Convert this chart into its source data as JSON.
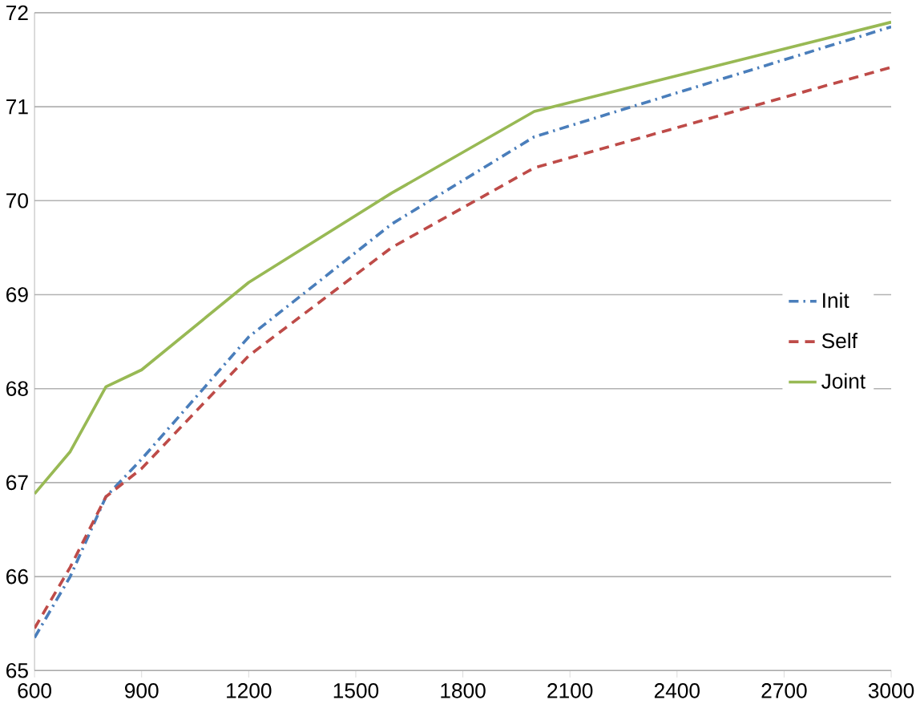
{
  "chart_data": {
    "type": "line",
    "x": [
      600,
      700,
      800,
      900,
      1200,
      1600,
      2000,
      3000
    ],
    "series": [
      {
        "name": "Init",
        "color": "#4a7ebb",
        "line_style": "dashdot",
        "values": [
          65.35,
          66.0,
          66.85,
          67.25,
          68.55,
          69.75,
          70.68,
          71.85
        ]
      },
      {
        "name": "Self",
        "color": "#be4b48",
        "line_style": "dashed",
        "values": [
          65.45,
          66.1,
          66.85,
          67.15,
          68.35,
          69.5,
          70.35,
          71.42
        ]
      },
      {
        "name": "Joint",
        "color": "#98b954",
        "line_style": "solid",
        "values": [
          66.88,
          67.33,
          68.02,
          68.2,
          69.13,
          70.08,
          70.95,
          71.9
        ]
      }
    ],
    "xlim": [
      600,
      3000
    ],
    "xticks": [
      600,
      900,
      1200,
      1500,
      1800,
      2100,
      2400,
      2700,
      3000
    ],
    "ylim": [
      65,
      72
    ],
    "yticks": [
      65,
      66,
      67,
      68,
      69,
      70,
      71,
      72
    ],
    "grid": "y",
    "legend": "right"
  }
}
